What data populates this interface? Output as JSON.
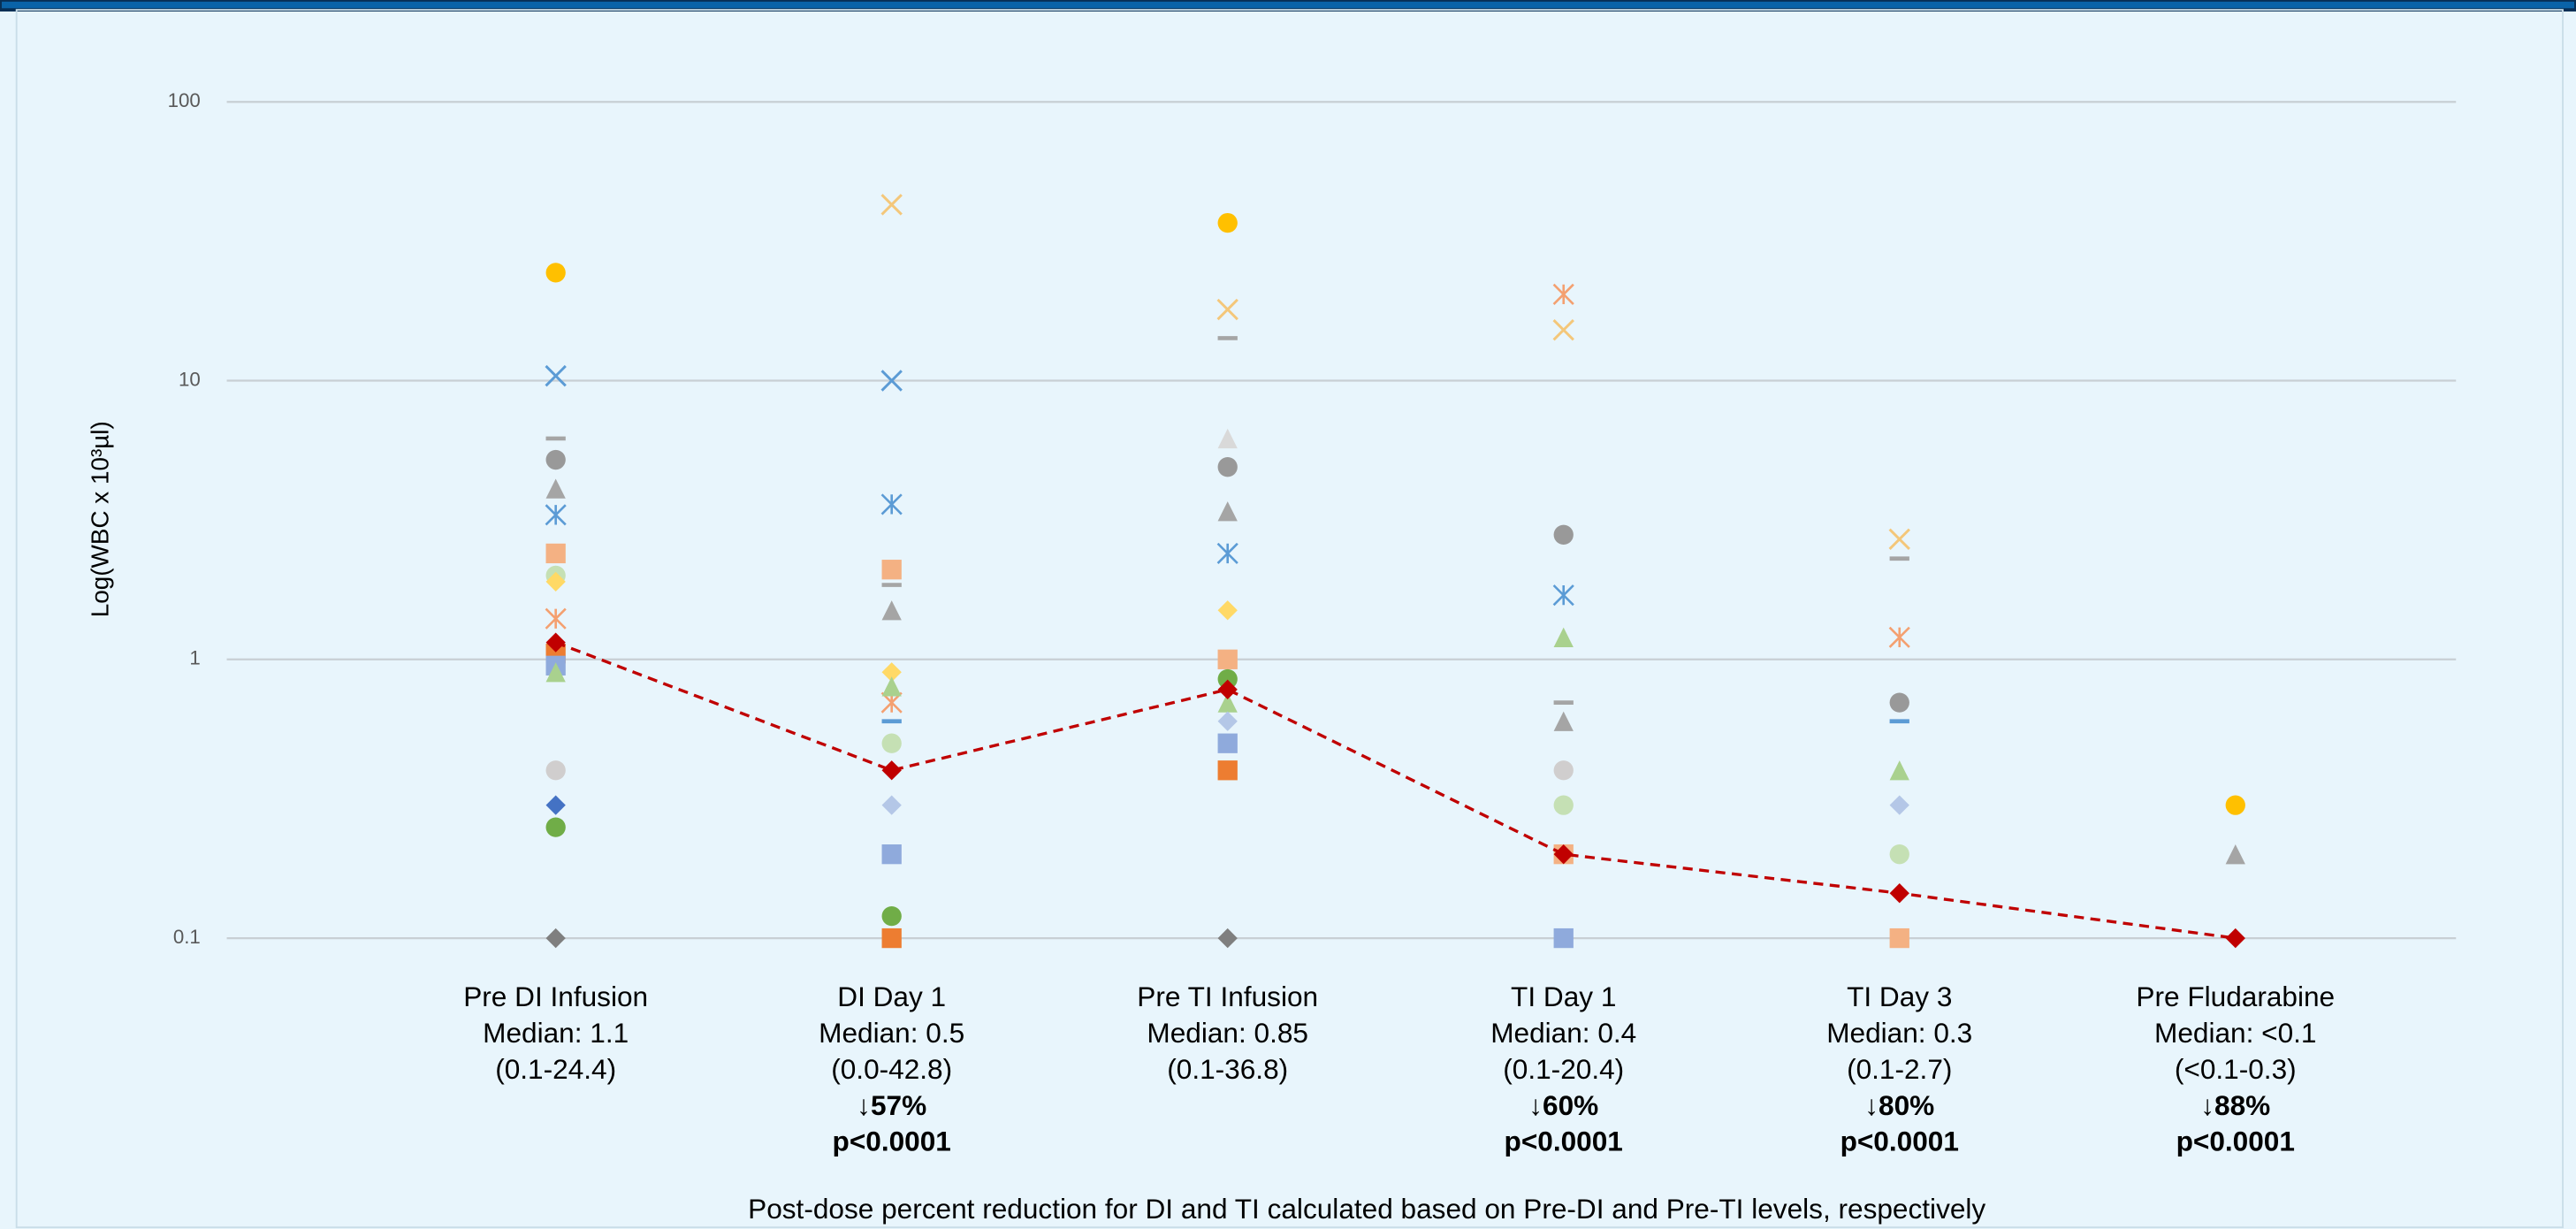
{
  "chart_data": {
    "type": "scatter",
    "y_label": "Log(WBC x 10³µl)",
    "log_scale": true,
    "grid": true,
    "ylim": [
      0.1,
      100
    ],
    "yticks": [
      0.1,
      1,
      10,
      100
    ],
    "categories": [
      "Pre DI Infusion",
      "DI Day 1",
      "Pre TI Infusion",
      "TI Day 1",
      "TI Day 3",
      "Pre Fludarabine"
    ],
    "category_lines": [
      [
        "Median: 1.1",
        "(0.1-24.4)"
      ],
      [
        "Median: 0.5",
        "(0.0-42.8)"
      ],
      [
        "Median: 0.85",
        "(0.1-36.8)"
      ],
      [
        "Median: 0.4",
        "(0.1-20.4)"
      ],
      [
        "Median: 0.3",
        "(0.1-2.7)"
      ],
      [
        "Median: <0.1",
        "(<0.1-0.3)"
      ]
    ],
    "category_bold_lines": [
      [],
      [
        "↓57%",
        "p<0.0001"
      ],
      [],
      [
        "↓60%",
        "p<0.0001"
      ],
      [
        "↓80%",
        "p<0.0001"
      ],
      [
        "↓88%",
        "p<0.0001"
      ]
    ],
    "footnote": "Post-dose percent reduction for DI and TI calculated based on Pre-DI and Pre-TI levels, respectively",
    "series": [
      {
        "color": "#ffc000",
        "marker": "circle",
        "values": [
          24.4,
          null,
          36.8,
          null,
          null,
          0.3
        ]
      },
      {
        "color": "#5b9bd5",
        "marker": "x",
        "values": [
          10.4,
          10,
          null,
          null,
          null,
          null
        ]
      },
      {
        "color": "#f4c77a",
        "marker": "x",
        "values": [
          null,
          42.8,
          18,
          15.2,
          2.7,
          null
        ]
      },
      {
        "color": "#a5a5a5",
        "marker": "dash",
        "values": [
          6.2,
          1.85,
          14.2,
          0.7,
          2.3,
          null
        ]
      },
      {
        "color": "#999999",
        "marker": "circle",
        "values": [
          5.2,
          null,
          4.9,
          2.8,
          0.7,
          null
        ]
      },
      {
        "color": "#a5a5a5",
        "marker": "triangle",
        "values": [
          4.1,
          1.5,
          3.4,
          0.6,
          null,
          0.2
        ]
      },
      {
        "color": "#5b9bd5",
        "marker": "asterisk",
        "values": [
          3.3,
          3.6,
          2.4,
          1.7,
          null,
          null
        ]
      },
      {
        "color": "#f4b183",
        "marker": "square",
        "values": [
          2.4,
          2.1,
          1.0,
          0.2,
          0.1,
          null
        ]
      },
      {
        "color": "#c5e0b4",
        "marker": "circle",
        "values": [
          2.0,
          0.5,
          null,
          0.3,
          0.2,
          null
        ]
      },
      {
        "color": "#ffd966",
        "marker": "diamond",
        "values": [
          1.9,
          0.9,
          1.5,
          null,
          null,
          null
        ]
      },
      {
        "color": "#f4a070",
        "marker": "asterisk",
        "values": [
          1.4,
          0.7,
          null,
          20.4,
          1.2,
          null
        ]
      },
      {
        "color": "#ed7d31",
        "marker": "square",
        "values": [
          1.05,
          0.1,
          0.4,
          null,
          null,
          null
        ]
      },
      {
        "color": "#8faadc",
        "marker": "square",
        "values": [
          0.95,
          0.2,
          0.5,
          0.1,
          null,
          null
        ]
      },
      {
        "color": "#a9d18e",
        "marker": "triangle",
        "values": [
          0.9,
          0.8,
          0.7,
          1.2,
          0.4,
          null
        ]
      },
      {
        "color": "#5b9bd5",
        "marker": "dash",
        "values": [
          null,
          0.6,
          null,
          null,
          0.6,
          null
        ]
      },
      {
        "color": "#d0cece",
        "marker": "circle",
        "values": [
          0.4,
          null,
          null,
          0.4,
          null,
          null
        ]
      },
      {
        "color": "#4472c4",
        "marker": "diamond",
        "values": [
          0.3,
          null,
          null,
          null,
          null,
          null
        ]
      },
      {
        "color": "#70ad47",
        "marker": "circle",
        "values": [
          0.25,
          0.12,
          0.85,
          null,
          null,
          null
        ]
      },
      {
        "color": "#7f7f7f",
        "marker": "diamond",
        "values": [
          0.1,
          null,
          0.1,
          null,
          null,
          null
        ]
      },
      {
        "color": "#b4c7e7",
        "marker": "diamond",
        "values": [
          null,
          0.3,
          0.6,
          null,
          0.3,
          null
        ]
      },
      {
        "color": "#d9d9d9",
        "marker": "triangle",
        "values": [
          null,
          null,
          6.2,
          null,
          null,
          null
        ]
      },
      {
        "color": "#c00000",
        "marker": "diamond",
        "line": "dashed",
        "values": [
          1.15,
          0.4,
          0.78,
          0.2,
          0.145,
          0.1
        ]
      }
    ]
  }
}
